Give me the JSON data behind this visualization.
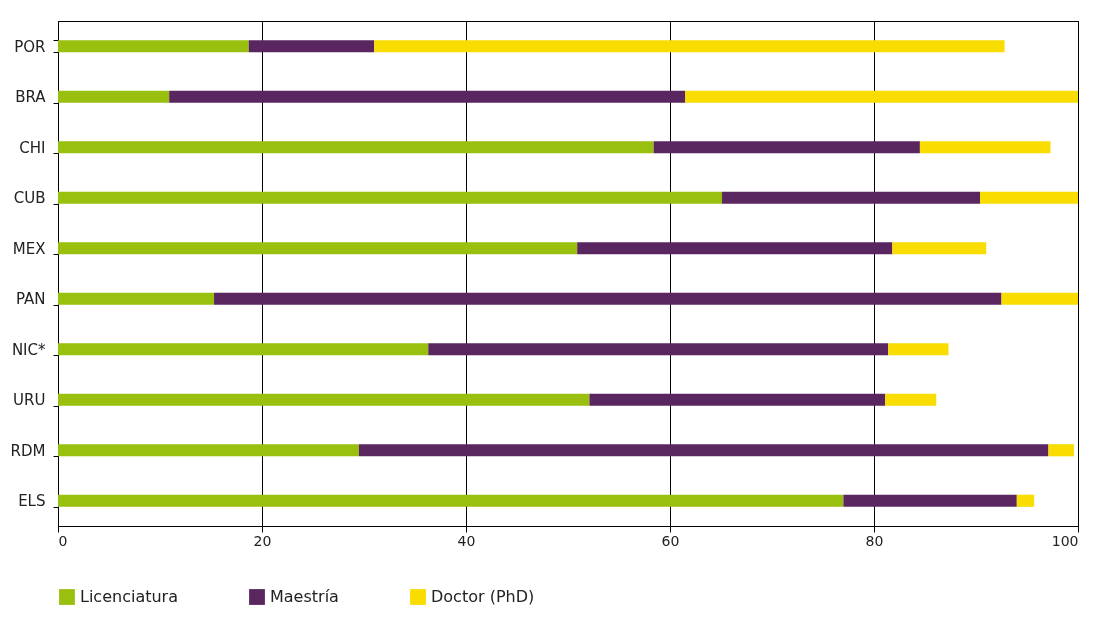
{
  "chart_data": {
    "type": "bar",
    "orientation": "horizontal",
    "stacked": true,
    "categories": [
      "POR",
      "BRA",
      "CHI",
      "CUB",
      "MEX",
      "PAN",
      "NIC*",
      "URU",
      "RDM",
      "ELS"
    ],
    "series": [
      {
        "name": "Licenciatura",
        "color": "#99bf0f",
        "values": [
          18.7,
          10.9,
          58.4,
          65.1,
          50.9,
          15.3,
          36.3,
          52.1,
          29.5,
          77.0
        ]
      },
      {
        "name": "Maestría",
        "color": "#5a2660",
        "values": [
          12.3,
          50.6,
          26.1,
          25.3,
          30.9,
          77.2,
          45.1,
          29.0,
          67.6,
          17.0
        ]
      },
      {
        "name": "Doctor (PhD)",
        "color": "#f9dc00",
        "values": [
          61.8,
          38.5,
          12.8,
          9.6,
          9.2,
          7.5,
          5.9,
          5.0,
          2.5,
          1.7
        ]
      }
    ],
    "xlim": [
      0,
      100
    ],
    "xticks": [
      0,
      20,
      40,
      60,
      80,
      100
    ],
    "grid": "x",
    "legend": "bottom"
  }
}
